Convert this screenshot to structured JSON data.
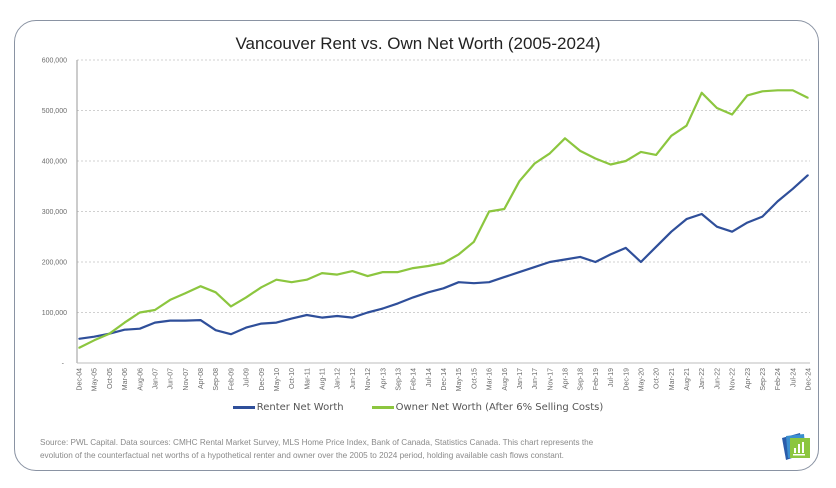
{
  "chart_data": {
    "type": "line",
    "title": "Vancouver Rent vs. Own Net Worth (2005-2024)",
    "xlabel": "",
    "ylabel": "",
    "ylim": [
      0,
      600000
    ],
    "yticks": [
      0,
      100000,
      200000,
      300000,
      400000,
      500000,
      600000
    ],
    "ytick_labels": [
      "-",
      "100,000",
      "200,000",
      "300,000",
      "400,000",
      "500,000",
      "600,000"
    ],
    "grid": true,
    "legend_position": "bottom",
    "categories": [
      "Dec-04",
      "May-05",
      "Oct-05",
      "Mar-06",
      "Aug-06",
      "Jan-07",
      "Jun-07",
      "Nov-07",
      "Apr-08",
      "Sep-08",
      "Feb-09",
      "Jul-09",
      "Dec-09",
      "May-10",
      "Oct-10",
      "Mar-11",
      "Aug-11",
      "Jan-12",
      "Jun-12",
      "Nov-12",
      "Apr-13",
      "Sep-13",
      "Feb-14",
      "Jul-14",
      "Dec-14",
      "May-15",
      "Oct-15",
      "Mar-16",
      "Aug-16",
      "Jan-17",
      "Jun-17",
      "Nov-17",
      "Apr-18",
      "Sep-18",
      "Feb-19",
      "Jul-19",
      "Dec-19",
      "May-20",
      "Oct-20",
      "Mar-21",
      "Aug-21",
      "Jan-22",
      "Jun-22",
      "Nov-22",
      "Apr-23",
      "Sep-23",
      "Feb-24",
      "Jul-24",
      "Dec-24"
    ],
    "series": [
      {
        "name": "Renter Net Worth",
        "color": "#2f4f9a",
        "values": [
          48000,
          52000,
          58000,
          66000,
          68000,
          80000,
          84000,
          84000,
          85000,
          65000,
          57000,
          70000,
          78000,
          80000,
          88000,
          95000,
          90000,
          93000,
          90000,
          100000,
          108000,
          118000,
          130000,
          140000,
          148000,
          160000,
          158000,
          160000,
          170000,
          180000,
          190000,
          200000,
          205000,
          210000,
          200000,
          215000,
          228000,
          200000,
          230000,
          260000,
          285000,
          295000,
          270000,
          260000,
          278000,
          290000,
          320000,
          345000,
          372000
        ]
      },
      {
        "name": "Owner Net Worth (After 6% Selling Costs)",
        "color": "#8cc63f",
        "values": [
          30000,
          45000,
          58000,
          80000,
          100000,
          105000,
          125000,
          138000,
          152000,
          140000,
          112000,
          130000,
          150000,
          165000,
          160000,
          165000,
          178000,
          175000,
          182000,
          172000,
          180000,
          180000,
          188000,
          192000,
          198000,
          215000,
          240000,
          300000,
          305000,
          360000,
          395000,
          415000,
          445000,
          420000,
          405000,
          393000,
          400000,
          418000,
          412000,
          450000,
          470000,
          535000,
          505000,
          492000,
          530000,
          538000,
          540000,
          540000,
          525000
        ]
      }
    ]
  },
  "footer": {
    "source_line1": "Source: PWL Capital. Data sources: CMHC Rental Market Survey, MLS Home Price Index, Bank of Canada, Statistics Canada. This chart represents the",
    "source_line2": "evolution of the counterfactual net worths of a hypothetical renter and owner over the 2005 to 2024 period, holding available cash flows constant.",
    "logo_icon": "pwl-chart-logo-icon"
  }
}
